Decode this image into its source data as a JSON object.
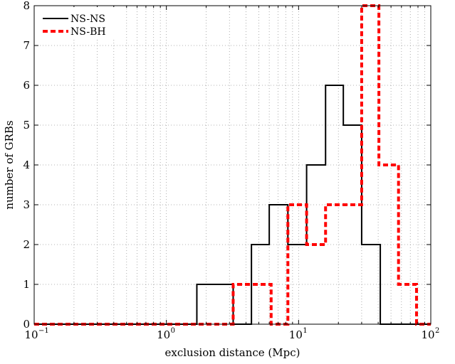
{
  "chart_data": {
    "type": "histogram",
    "xlabel": "exclusion distance (Mpc)",
    "ylabel": "number of GRBs",
    "xscale": "log",
    "xlim": [
      0.1,
      100
    ],
    "ylim": [
      0,
      8
    ],
    "xticks": [
      {
        "value": 0.1,
        "base": "10",
        "exp": "−1"
      },
      {
        "value": 1,
        "base": "10",
        "exp": "0"
      },
      {
        "value": 10,
        "base": "10",
        "exp": "1"
      },
      {
        "value": 100,
        "base": "10",
        "exp": "2"
      }
    ],
    "yticks": [
      "0",
      "1",
      "2",
      "3",
      "4",
      "5",
      "6",
      "7",
      "8"
    ],
    "grid": true,
    "legend_position": "top-left",
    "series": [
      {
        "name": "NS-NS",
        "color": "#000000",
        "style": "solid",
        "edges": [
          0.1,
          1.7,
          3.2,
          4.4,
          6.0,
          8.3,
          11.5,
          16.0,
          21.8,
          30.0,
          41.5,
          100
        ],
        "counts": [
          0,
          1,
          0,
          2,
          3,
          2,
          4,
          6,
          5,
          2,
          0
        ]
      },
      {
        "name": "NS-BH",
        "color": "#ff0000",
        "style": "dashed",
        "edges": [
          0.1,
          3.2,
          6.2,
          8.3,
          11.5,
          16.0,
          30.0,
          40.5,
          57.0,
          78.0,
          100
        ],
        "counts": [
          0,
          1,
          0,
          3,
          2,
          3,
          8,
          4,
          1,
          0
        ]
      }
    ]
  }
}
